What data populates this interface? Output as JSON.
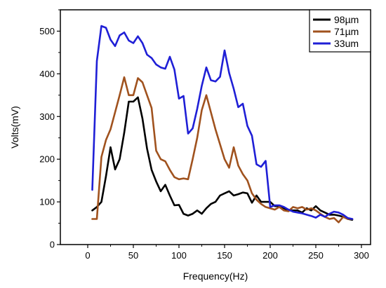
{
  "chart_data": {
    "type": "line",
    "title": "",
    "xlabel": "Frequency(Hz)",
    "ylabel": "Volts(mV)",
    "xlim": [
      -30,
      310
    ],
    "ylim": [
      0,
      550
    ],
    "x_ticks": [
      0,
      50,
      100,
      150,
      200,
      250,
      300
    ],
    "y_ticks": [
      0,
      100,
      200,
      300,
      400,
      500
    ],
    "x_tick_labels": [
      "0",
      "50",
      "100",
      "150",
      "200",
      "250",
      "300"
    ],
    "y_tick_labels": [
      "0",
      "100",
      "200",
      "300",
      "400",
      "500"
    ],
    "grid": false,
    "legend_position": "top-right",
    "series": [
      {
        "name": "98µm",
        "color": "#000000",
        "x": [
          5,
          10,
          15,
          20,
          25,
          30,
          35,
          40,
          45,
          50,
          55,
          60,
          65,
          70,
          75,
          80,
          85,
          90,
          95,
          100,
          105,
          110,
          115,
          120,
          125,
          130,
          135,
          140,
          145,
          150,
          155,
          160,
          165,
          170,
          175,
          180,
          185,
          190,
          195,
          200,
          205,
          210,
          215,
          220,
          225,
          230,
          235,
          240,
          245,
          250,
          255,
          260,
          265,
          270,
          275,
          280,
          285,
          290
        ],
        "y": [
          80,
          88,
          100,
          160,
          228,
          176,
          200,
          262,
          335,
          335,
          345,
          295,
          225,
          175,
          148,
          125,
          140,
          115,
          92,
          93,
          72,
          68,
          72,
          80,
          72,
          85,
          95,
          100,
          115,
          120,
          125,
          115,
          118,
          122,
          120,
          98,
          115,
          100,
          100,
          100,
          90,
          90,
          85,
          80,
          80,
          80,
          75,
          85,
          80,
          90,
          80,
          75,
          70,
          70,
          68,
          65,
          60,
          58
        ]
      },
      {
        "name": "71µm",
        "color": "#a0521e",
        "x": [
          5,
          10,
          15,
          20,
          25,
          30,
          35,
          40,
          45,
          50,
          55,
          60,
          65,
          70,
          75,
          80,
          85,
          90,
          95,
          100,
          105,
          110,
          115,
          120,
          125,
          130,
          135,
          140,
          145,
          150,
          155,
          160,
          165,
          170,
          175,
          180,
          185,
          190,
          195,
          200,
          205,
          210,
          215,
          220,
          225,
          230,
          235,
          240,
          245,
          250,
          255,
          260,
          265,
          270,
          275,
          280,
          285,
          290
        ],
        "y": [
          60,
          60,
          205,
          245,
          270,
          310,
          350,
          392,
          350,
          350,
          390,
          380,
          350,
          320,
          220,
          200,
          195,
          175,
          158,
          153,
          155,
          153,
          200,
          250,
          315,
          350,
          310,
          270,
          235,
          200,
          180,
          228,
          185,
          165,
          150,
          120,
          105,
          95,
          88,
          85,
          82,
          88,
          80,
          78,
          88,
          85,
          88,
          82,
          85,
          80,
          72,
          65,
          60,
          62,
          52,
          65,
          60,
          60
        ]
      },
      {
        "name": "33um",
        "color": "#1f1fd6",
        "x": [
          5,
          10,
          15,
          20,
          25,
          30,
          35,
          40,
          45,
          50,
          55,
          60,
          65,
          70,
          75,
          80,
          85,
          90,
          95,
          100,
          105,
          110,
          115,
          120,
          125,
          130,
          135,
          140,
          145,
          150,
          155,
          160,
          165,
          170,
          175,
          180,
          185,
          190,
          195,
          200,
          205,
          210,
          215,
          220,
          225,
          230,
          235,
          240,
          245,
          250,
          255,
          260,
          265,
          270,
          275,
          280,
          285,
          290
        ],
        "y": [
          128,
          430,
          512,
          508,
          480,
          465,
          490,
          497,
          478,
          472,
          488,
          472,
          445,
          437,
          422,
          415,
          412,
          440,
          410,
          342,
          348,
          260,
          272,
          318,
          372,
          415,
          385,
          382,
          393,
          455,
          402,
          365,
          322,
          330,
          278,
          255,
          188,
          182,
          196,
          88,
          92,
          92,
          88,
          82,
          77,
          75,
          73,
          70,
          67,
          63,
          70,
          65,
          72,
          77,
          75,
          70,
          62,
          60
        ]
      }
    ]
  }
}
